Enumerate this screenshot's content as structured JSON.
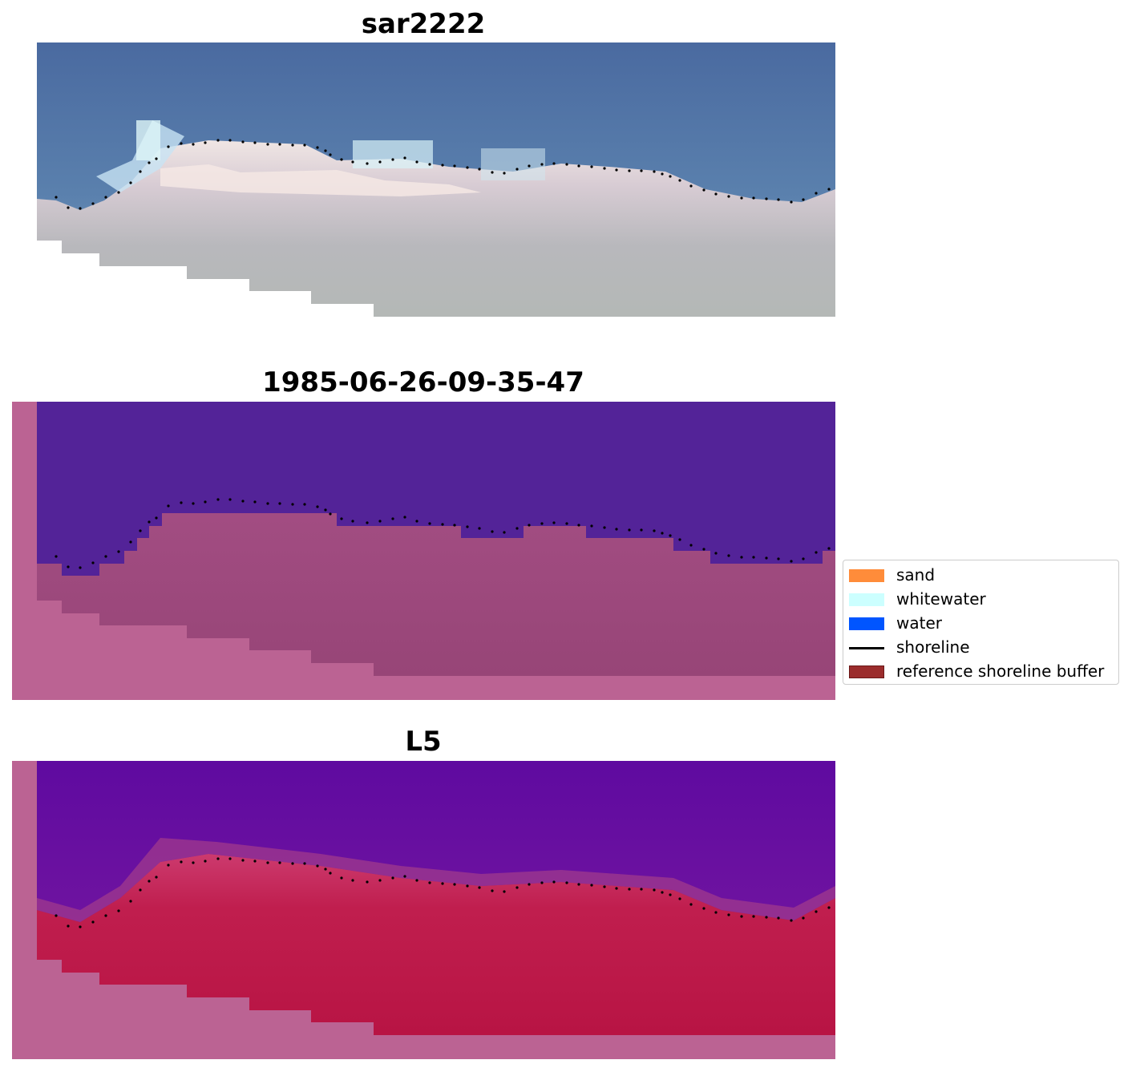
{
  "panels": [
    {
      "title": "sar2222",
      "kind": "rgb"
    },
    {
      "title": "1985-06-26-09-35-47",
      "kind": "classified"
    },
    {
      "title": "L5",
      "kind": "index"
    }
  ],
  "legend": {
    "items": [
      {
        "label": "sand",
        "type": "patch",
        "color": "#ff8c3a"
      },
      {
        "label": "whitewater",
        "type": "patch",
        "color": "#ccffff"
      },
      {
        "label": "water",
        "type": "patch",
        "color": "#0055ff"
      },
      {
        "label": "shoreline",
        "type": "line",
        "color": "#000000"
      },
      {
        "label": "reference shoreline buffer",
        "type": "patch",
        "color": "#9b2c2c"
      }
    ]
  },
  "colors": {
    "water_blue": "#4a6ea0",
    "beach_sand": "#e6dcda",
    "class_water": "#532398",
    "class_land": "#9c4a7c",
    "buffer_pink": "#bb6393",
    "index_water": "#5c0aa0",
    "index_land": "#be1545"
  }
}
